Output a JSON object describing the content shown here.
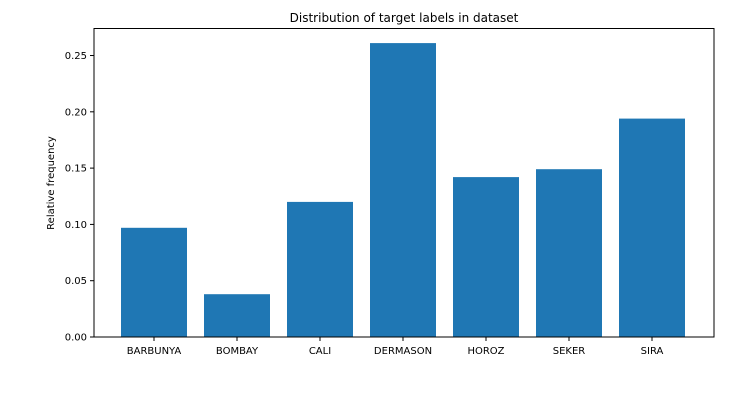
{
  "chart_data": {
    "type": "bar",
    "title": "Distribution of target labels in dataset",
    "xlabel": "",
    "ylabel": "Relative frequency",
    "categories": [
      "BARBUNYA",
      "BOMBAY",
      "CALI",
      "DERMASON",
      "HOROZ",
      "SEKER",
      "SIRA"
    ],
    "values": [
      0.097,
      0.038,
      0.12,
      0.261,
      0.142,
      0.149,
      0.194
    ],
    "ylim": [
      0,
      0.274
    ],
    "yticks": [
      0.0,
      0.05,
      0.1,
      0.15,
      0.2,
      0.25
    ],
    "ytick_labels": [
      "0.00",
      "0.05",
      "0.10",
      "0.15",
      "0.20",
      "0.25"
    ],
    "bar_color": "#1f77b4",
    "grid": false,
    "legend": "none"
  }
}
